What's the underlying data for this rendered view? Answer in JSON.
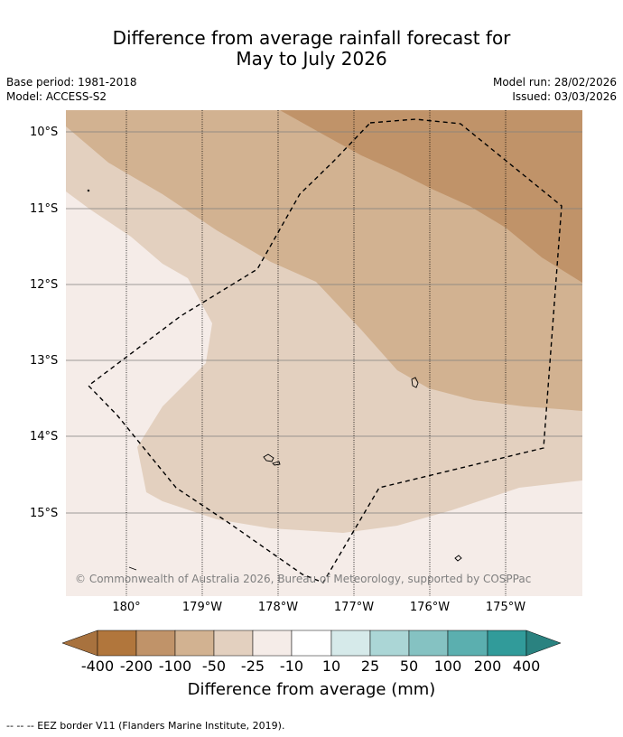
{
  "title": {
    "line1": "Difference from average rainfall forecast for",
    "line2": "May to July 2026"
  },
  "meta": {
    "base_period": "Base period: 1981-2018",
    "model": "Model: ACCESS-S2",
    "model_run": "Model run: 28/02/2026",
    "issued": "Issued: 03/03/2026"
  },
  "map": {
    "lat_labels": [
      "10°S",
      "11°S",
      "12°S",
      "13°S",
      "14°S",
      "15°S"
    ],
    "lon_labels": [
      "180°",
      "179°W",
      "178°W",
      "177°W",
      "176°W",
      "175°W"
    ],
    "copyright": "© Commonwealth of Australia 2026, Bureau of Meteorology, supported by COSPPac",
    "palette": {
      "lt_-200": "#c09369",
      "-200_-100": "#d2b291",
      "-100_-50": "#e3d0bf",
      "-50_-25": "#f5ece8",
      "eez_line": "#000000",
      "grid_line": "#7f7f7f"
    }
  },
  "colorbar": {
    "labels": [
      "-400",
      "-200",
      "-100",
      "-50",
      "-25",
      "-10",
      "10",
      "25",
      "50",
      "100",
      "200",
      "400"
    ],
    "colors": [
      "#a8723e",
      "#b1763c",
      "#c09369",
      "#d2b291",
      "#e3d0bf",
      "#f5ece8",
      "#ffffff",
      "#d6eaea",
      "#abd6d6",
      "#85c2c2",
      "#5bafaf",
      "#319b9a",
      "#2a8280"
    ],
    "title": "Difference from average (mm)"
  },
  "footer": {
    "legend": "--  --  -- EEZ border V11 (Flanders Marine Institute, 2019)."
  }
}
